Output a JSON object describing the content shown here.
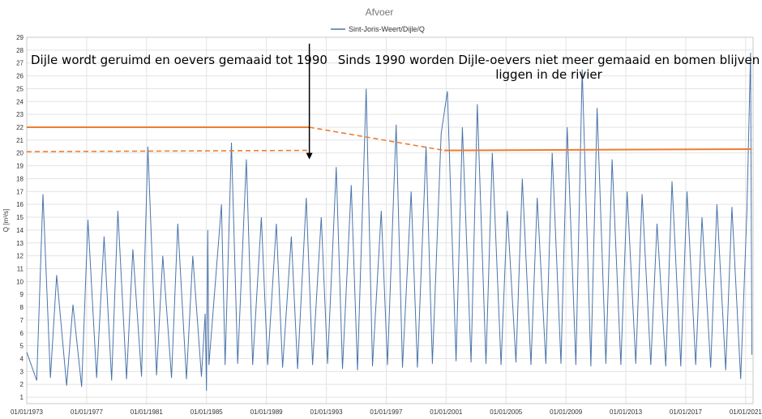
{
  "chart_data": {
    "type": "line",
    "title": "Afvoer",
    "ylabel": "Q [m³/s]",
    "xlabel": "",
    "legend": {
      "position": "top-center",
      "entries": [
        "Sint-Joris-Weert/Dijle/Q"
      ]
    },
    "grid": true,
    "xlim": [
      "1973-01-01",
      "2021-07-01"
    ],
    "ylim": [
      0.5,
      29
    ],
    "yticks": [
      1,
      2,
      3,
      4,
      5,
      6,
      7,
      8,
      9,
      10,
      11,
      12,
      13,
      14,
      15,
      16,
      17,
      18,
      19,
      20,
      21,
      22,
      23,
      24,
      25,
      26,
      27,
      28,
      29
    ],
    "xticks": [
      "01/01/1973",
      "01/01/1977",
      "01/01/1981",
      "01/01/1985",
      "01/01/1989",
      "01/01/1993",
      "01/01/1997",
      "01/01/2001",
      "01/01/2005",
      "01/01/2009",
      "01/01/2013",
      "01/01/2017",
      "01/01/2021"
    ],
    "series": [
      {
        "name": "Sint-Joris-Weert/Dijle/Q",
        "color": "#4a74aa",
        "x": [
          "1973-01-01",
          "1973-09-01",
          "1974-02-01",
          "1974-08-01",
          "1975-01-01",
          "1975-09-01",
          "1976-02-01",
          "1976-09-01",
          "1977-02-01",
          "1977-09-01",
          "1978-03-01",
          "1978-09-01",
          "1979-02-01",
          "1979-09-01",
          "1980-02-01",
          "1980-09-01",
          "1981-02-01",
          "1981-09-01",
          "1982-02-01",
          "1982-09-01",
          "1983-02-01",
          "1983-09-01",
          "1984-02-01",
          "1984-09-01",
          "1984-12-01",
          "1985-01-01",
          "1985-02-01",
          "1985-03-01",
          "1986-01-01",
          "1986-04-01",
          "1986-09-01",
          "1987-02-01",
          "1987-09-01",
          "1988-02-01",
          "1988-09-01",
          "1989-02-01",
          "1989-09-01",
          "1990-02-01",
          "1990-09-01",
          "1991-02-01",
          "1991-09-01",
          "1992-02-01",
          "1992-09-01",
          "1993-02-01",
          "1993-09-01",
          "1994-02-01",
          "1994-09-01",
          "1995-02-01",
          "1995-09-01",
          "1996-02-01",
          "1996-09-01",
          "1997-02-01",
          "1997-09-01",
          "1998-02-01",
          "1998-09-01",
          "1999-02-01",
          "1999-09-01",
          "2000-02-01",
          "2000-09-01",
          "2001-02-01",
          "2001-09-01",
          "2002-02-01",
          "2002-09-01",
          "2003-02-01",
          "2003-09-01",
          "2004-02-01",
          "2004-09-01",
          "2005-02-01",
          "2005-09-01",
          "2006-02-01",
          "2006-09-01",
          "2007-02-01",
          "2007-09-01",
          "2008-02-01",
          "2008-09-01",
          "2009-02-01",
          "2009-09-01",
          "2010-02-01",
          "2010-09-01",
          "2011-02-01",
          "2011-09-01",
          "2012-02-01",
          "2012-09-01",
          "2013-02-01",
          "2013-09-01",
          "2014-02-01",
          "2014-09-01",
          "2015-02-01",
          "2015-09-01",
          "2016-02-01",
          "2016-09-01",
          "2017-02-01",
          "2017-09-01",
          "2018-02-01",
          "2018-09-01",
          "2019-02-01",
          "2019-09-01",
          "2020-02-01",
          "2020-09-01",
          "2021-02-01",
          "2021-05-01",
          "2021-06-01"
        ],
        "y": [
          4.5,
          2.3,
          16.8,
          2.5,
          10.5,
          1.9,
          8.2,
          1.8,
          14.8,
          2.5,
          13.5,
          2.3,
          15.5,
          2.4,
          12.5,
          2.6,
          20.5,
          2.7,
          12.0,
          2.5,
          14.5,
          2.4,
          12.0,
          2.6,
          7.5,
          1.5,
          14.0,
          3.5,
          16.0,
          3.5,
          20.8,
          3.6,
          19.5,
          3.5,
          15.0,
          3.5,
          14.5,
          3.3,
          13.5,
          3.2,
          16.5,
          3.5,
          15.0,
          3.6,
          18.9,
          3.2,
          17.5,
          3.1,
          25.0,
          3.4,
          15.5,
          3.5,
          22.2,
          3.3,
          17.0,
          3.3,
          20.5,
          3.6,
          21.5,
          24.8,
          3.8,
          22.0,
          3.7,
          23.8,
          3.6,
          20.0,
          3.5,
          15.5,
          3.7,
          18.0,
          3.5,
          16.5,
          3.6,
          20.0,
          3.6,
          22.0,
          3.5,
          26.5,
          3.4,
          23.5,
          3.6,
          19.5,
          3.5,
          17.0,
          3.6,
          16.8,
          3.5,
          14.5,
          3.4,
          17.8,
          3.4,
          17.0,
          3.5,
          15.0,
          3.3,
          16.0,
          3.1,
          15.8,
          2.4,
          15.5,
          27.8,
          4.3
        ]
      }
    ],
    "reference_lines": [
      {
        "label": "",
        "style": "solid",
        "color": "#ed7d31",
        "x": [
          "1973-01-01",
          "1991-11-15"
        ],
        "y": [
          22.0,
          22.0
        ]
      },
      {
        "label": "",
        "style": "dashed",
        "color": "#ed7d31",
        "x": [
          "1973-01-01",
          "1991-11-15"
        ],
        "y": [
          20.1,
          20.2
        ]
      },
      {
        "label": "",
        "style": "dashed",
        "color": "#ed7d31",
        "x": [
          "1991-11-15",
          "2000-11-15"
        ],
        "y": [
          22.0,
          20.2
        ]
      },
      {
        "label": "",
        "style": "solid",
        "color": "#ed7d31",
        "x": [
          "2000-11-15",
          "2021-06-01"
        ],
        "y": [
          20.2,
          20.3
        ]
      }
    ],
    "annotations": [
      {
        "id": "left",
        "text": "Dijle wordt geruimd en oevers gemaaid tot 1990"
      },
      {
        "id": "right",
        "text": "Sinds 1990 worden Dijle-oevers niet meer gemaaid en bomen blijven",
        "text2": "liggen in de rivier"
      }
    ],
    "arrow": {
      "x": "1991-11-15",
      "from_y": 28.5,
      "to_y": 19.5,
      "color": "#000000"
    }
  }
}
